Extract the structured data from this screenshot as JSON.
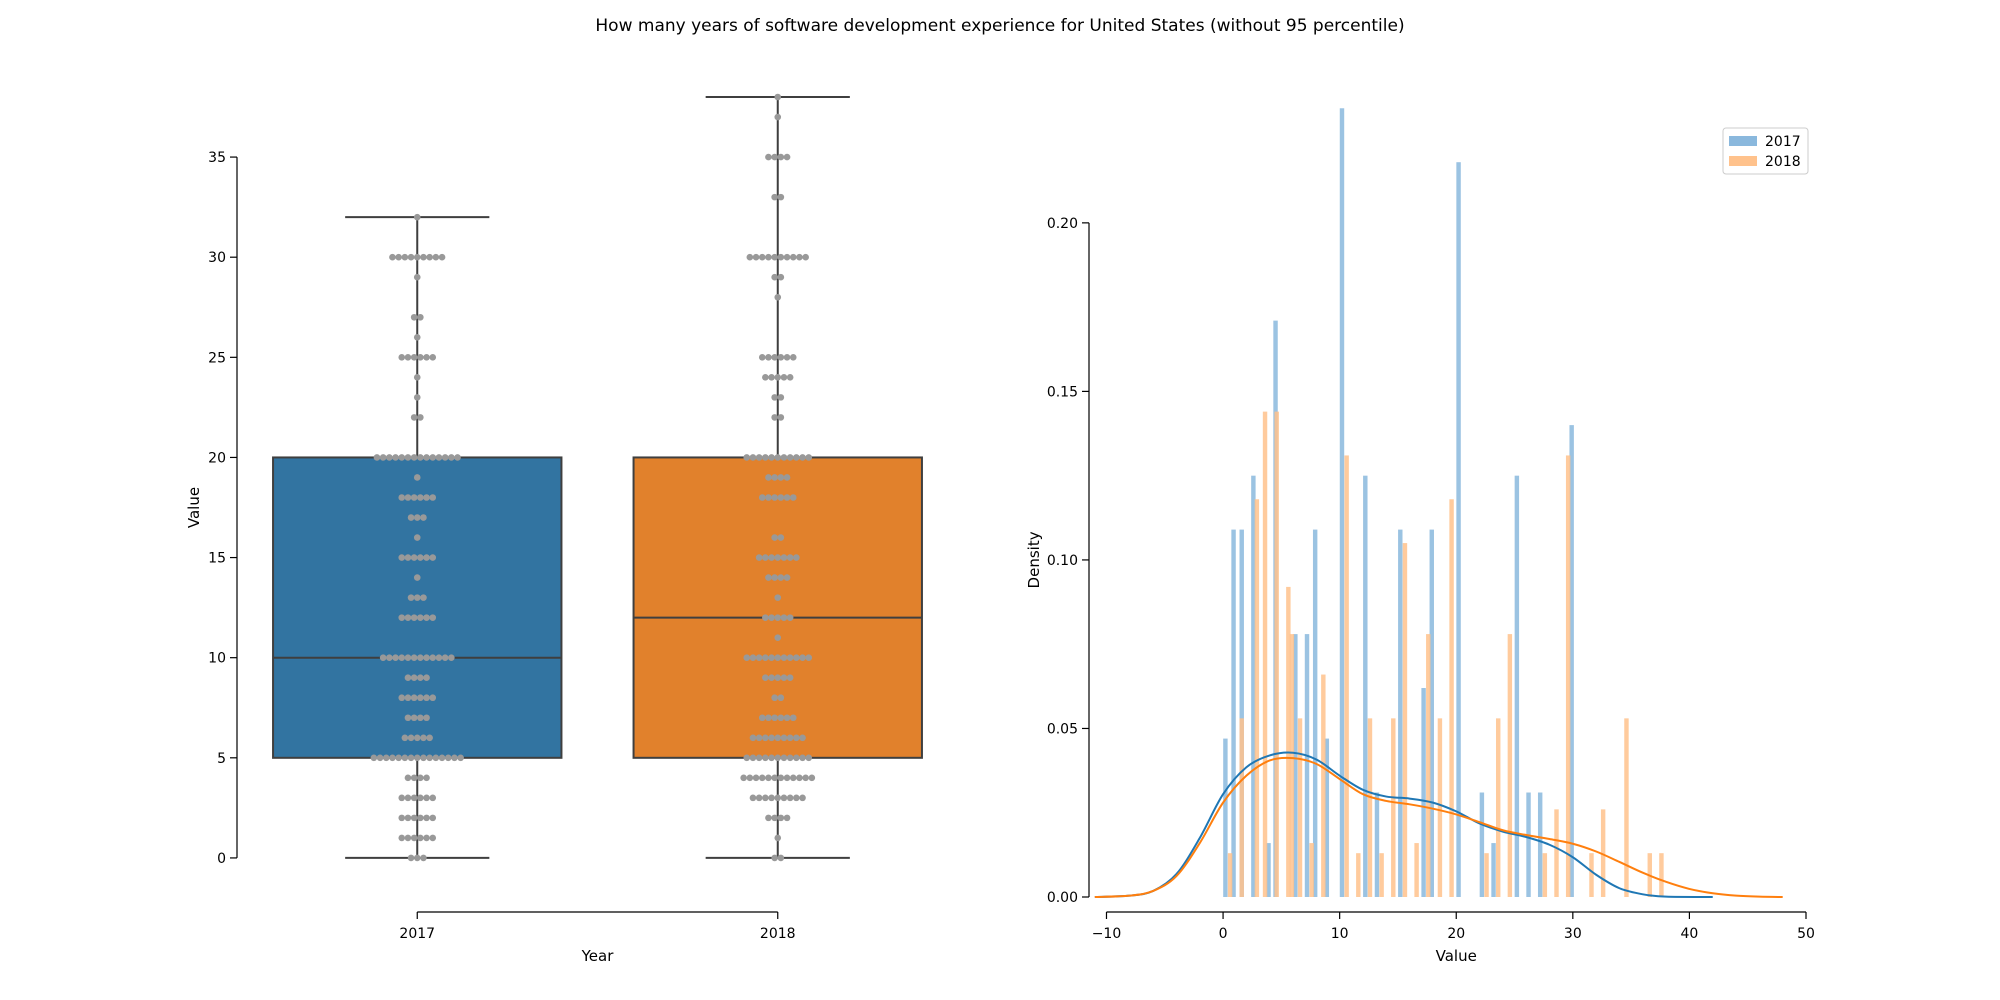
{
  "title": "How many years of software development experience for United States (without 95 percentile)",
  "chart_data": [
    {
      "type": "box",
      "xlabel": "Year",
      "ylabel": "Value",
      "categories": [
        "2017",
        "2018"
      ],
      "colors": [
        "#3274a1",
        "#e1812c"
      ],
      "point_color": "#999999",
      "yticks": [
        0,
        5,
        10,
        15,
        20,
        25,
        30,
        35
      ],
      "ylim": [
        -2.7,
        38
      ],
      "boxes": [
        {
          "name": "2017",
          "q1": 5,
          "median": 10,
          "q3": 20,
          "whisker_low": 0,
          "whisker_high": 32
        },
        {
          "name": "2018",
          "q1": 5,
          "median": 12,
          "q3": 20,
          "whisker_low": 0,
          "whisker_high": 38
        }
      ],
      "swarm": [
        [
          [
            0,
            3
          ],
          [
            1,
            6
          ],
          [
            2,
            6
          ],
          [
            3,
            6
          ],
          [
            4,
            4
          ],
          [
            5,
            15
          ],
          [
            6,
            5
          ],
          [
            7,
            4
          ],
          [
            8,
            6
          ],
          [
            9,
            4
          ],
          [
            10,
            12
          ],
          [
            12,
            6
          ],
          [
            13,
            3
          ],
          [
            14,
            1
          ],
          [
            15,
            6
          ],
          [
            16,
            1
          ],
          [
            17,
            3
          ],
          [
            18,
            6
          ],
          [
            19,
            1
          ],
          [
            20,
            14
          ],
          [
            22,
            2
          ],
          [
            23,
            1
          ],
          [
            24,
            1
          ],
          [
            25,
            6
          ],
          [
            26,
            1
          ],
          [
            27,
            2
          ],
          [
            29,
            1
          ],
          [
            30,
            9
          ],
          [
            32,
            1
          ]
        ],
        [
          [
            0,
            2
          ],
          [
            1,
            1
          ],
          [
            2,
            4
          ],
          [
            3,
            9
          ],
          [
            4,
            12
          ],
          [
            5,
            11
          ],
          [
            6,
            9
          ],
          [
            7,
            6
          ],
          [
            8,
            2
          ],
          [
            9,
            5
          ],
          [
            10,
            11
          ],
          [
            11,
            1
          ],
          [
            12,
            5
          ],
          [
            13,
            1
          ],
          [
            14,
            4
          ],
          [
            15,
            7
          ],
          [
            16,
            2
          ],
          [
            18,
            6
          ],
          [
            19,
            4
          ],
          [
            20,
            11
          ],
          [
            22,
            2
          ],
          [
            23,
            2
          ],
          [
            24,
            5
          ],
          [
            25,
            6
          ],
          [
            28,
            1
          ],
          [
            29,
            2
          ],
          [
            30,
            10
          ],
          [
            33,
            2
          ],
          [
            35,
            4
          ],
          [
            37,
            1
          ],
          [
            38,
            1
          ]
        ]
      ]
    },
    {
      "type": "histogram_kde",
      "xlabel": "Value",
      "ylabel": "Density",
      "xlim": [
        -11.5,
        50
      ],
      "ylim": [
        0,
        0.232
      ],
      "xticks": [
        -10,
        0,
        10,
        20,
        30,
        40,
        50
      ],
      "yticks": [
        0.0,
        0.05,
        0.1,
        0.15,
        0.2
      ],
      "legend_position": "top-right",
      "bar_width": 0.38,
      "series": [
        {
          "name": "2017",
          "color": "#1f77b4",
          "bar_color": "#8ab8dd",
          "bars": [
            [
              0.2,
              0.047
            ],
            [
              0.9,
              0.109
            ],
            [
              1.6,
              0.109
            ],
            [
              2.6,
              0.125
            ],
            [
              3.9,
              0.016
            ],
            [
              4.5,
              0.171
            ],
            [
              5.5,
              0.0
            ],
            [
              6.2,
              0.078
            ],
            [
              7.2,
              0.078
            ],
            [
              7.9,
              0.109
            ],
            [
              8.9,
              0.047
            ],
            [
              10.2,
              0.234
            ],
            [
              11.2,
              0.0
            ],
            [
              12.2,
              0.125
            ],
            [
              13.2,
              0.031
            ],
            [
              14.2,
              0.0
            ],
            [
              15.2,
              0.109
            ],
            [
              16.2,
              0.0
            ],
            [
              17.2,
              0.062
            ],
            [
              17.9,
              0.109
            ],
            [
              18.9,
              0.0
            ],
            [
              20.2,
              0.218
            ],
            [
              21.2,
              0.0
            ],
            [
              22.2,
              0.031
            ],
            [
              23.2,
              0.016
            ],
            [
              24.2,
              0.0
            ],
            [
              25.2,
              0.125
            ],
            [
              26.2,
              0.031
            ],
            [
              27.2,
              0.031
            ],
            [
              28.2,
              0.0
            ],
            [
              29.9,
              0.14
            ],
            [
              32.2,
              0.0
            ]
          ],
          "kde": [
            [
              -11,
              0
            ],
            [
              -8,
              0.0004
            ],
            [
              -6,
              0.0018
            ],
            [
              -4,
              0.0068
            ],
            [
              -2,
              0.0175
            ],
            [
              0,
              0.0305
            ],
            [
              2,
              0.0385
            ],
            [
              4,
              0.042
            ],
            [
              6,
              0.0428
            ],
            [
              8,
              0.0408
            ],
            [
              10,
              0.036
            ],
            [
              12,
              0.0318
            ],
            [
              14,
              0.0298
            ],
            [
              16,
              0.0292
            ],
            [
              18,
              0.028
            ],
            [
              20,
              0.0254
            ],
            [
              22,
              0.0218
            ],
            [
              24,
              0.0194
            ],
            [
              26,
              0.0178
            ],
            [
              28,
              0.0155
            ],
            [
              30,
              0.0118
            ],
            [
              32,
              0.0066
            ],
            [
              34,
              0.0026
            ],
            [
              36,
              0.0008
            ],
            [
              38,
              0.0001
            ],
            [
              42,
              0
            ]
          ]
        },
        {
          "name": "2018",
          "color": "#ff7f0e",
          "bar_color": "#ffc28c",
          "bars": [
            [
              0.6,
              0.013
            ],
            [
              1.6,
              0.053
            ],
            [
              2.9,
              0.118
            ],
            [
              3.6,
              0.144
            ],
            [
              4.6,
              0.144
            ],
            [
              5.6,
              0.092
            ],
            [
              5.9,
              0.078
            ],
            [
              6.6,
              0.053
            ],
            [
              7.6,
              0.016
            ],
            [
              8.6,
              0.066
            ],
            [
              9.6,
              0.0
            ],
            [
              10.6,
              0.131
            ],
            [
              11.6,
              0.013
            ],
            [
              12.6,
              0.053
            ],
            [
              13.6,
              0.013
            ],
            [
              14.6,
              0.053
            ],
            [
              15.6,
              0.105
            ],
            [
              16.6,
              0.016
            ],
            [
              17.6,
              0.078
            ],
            [
              18.6,
              0.053
            ],
            [
              19.6,
              0.118
            ],
            [
              21.6,
              0.0
            ],
            [
              22.6,
              0.013
            ],
            [
              23.6,
              0.053
            ],
            [
              24.6,
              0.078
            ],
            [
              25.6,
              0.0
            ],
            [
              27.6,
              0.013
            ],
            [
              28.6,
              0.026
            ],
            [
              29.6,
              0.131
            ],
            [
              31.6,
              0.013
            ],
            [
              32.6,
              0.026
            ],
            [
              34.6,
              0.053
            ],
            [
              36.6,
              0.013
            ],
            [
              37.6,
              0.013
            ]
          ],
          "kde": [
            [
              -11,
              0
            ],
            [
              -8,
              0.0004
            ],
            [
              -6,
              0.0018
            ],
            [
              -4,
              0.0062
            ],
            [
              -2,
              0.016
            ],
            [
              0,
              0.028
            ],
            [
              2,
              0.036
            ],
            [
              4,
              0.0405
            ],
            [
              6,
              0.0412
            ],
            [
              8,
              0.0395
            ],
            [
              10,
              0.035
            ],
            [
              12,
              0.0305
            ],
            [
              14,
              0.0285
            ],
            [
              16,
              0.0275
            ],
            [
              18,
              0.0262
            ],
            [
              20,
              0.0245
            ],
            [
              22,
              0.0222
            ],
            [
              24,
              0.0198
            ],
            [
              26,
              0.0184
            ],
            [
              28,
              0.0172
            ],
            [
              30,
              0.0158
            ],
            [
              32,
              0.0135
            ],
            [
              34,
              0.0104
            ],
            [
              36,
              0.0072
            ],
            [
              38,
              0.0045
            ],
            [
              40,
              0.0024
            ],
            [
              42,
              0.0011
            ],
            [
              44,
              0.0004
            ],
            [
              46,
              0.0001
            ],
            [
              48,
              0
            ]
          ]
        }
      ]
    }
  ]
}
